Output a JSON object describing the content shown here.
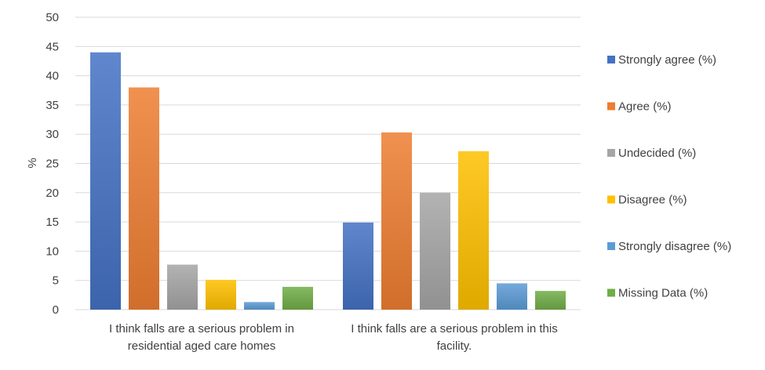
{
  "chart_data": {
    "type": "bar",
    "title": "",
    "xlabel": "",
    "ylabel": "%",
    "ylim": [
      0,
      50
    ],
    "yticks": [
      0,
      5,
      10,
      15,
      20,
      25,
      30,
      35,
      40,
      45,
      50
    ],
    "grid": true,
    "legend_position": "right",
    "categories": [
      [
        "I think falls are a serious problem in",
        "residential aged care homes"
      ],
      [
        "I think falls are a serious problem in this",
        "facility."
      ]
    ],
    "series": [
      {
        "name": "Strongly agree (%)",
        "color": "#4472c4",
        "values": [
          44,
          14.9
        ]
      },
      {
        "name": "Agree (%)",
        "color": "#ed7d31",
        "values": [
          38,
          30.3
        ]
      },
      {
        "name": "Undecided (%)",
        "color": "#a5a5a5",
        "values": [
          7.7,
          20
        ]
      },
      {
        "name": "Disagree (%)",
        "color": "#ffc000",
        "values": [
          5.1,
          27.1
        ]
      },
      {
        "name": "Strongly disagree (%)",
        "color": "#5b9bd5",
        "values": [
          1.3,
          4.5
        ]
      },
      {
        "name": "Missing Data (%)",
        "color": "#70ad47",
        "values": [
          3.9,
          3.2
        ]
      }
    ]
  }
}
